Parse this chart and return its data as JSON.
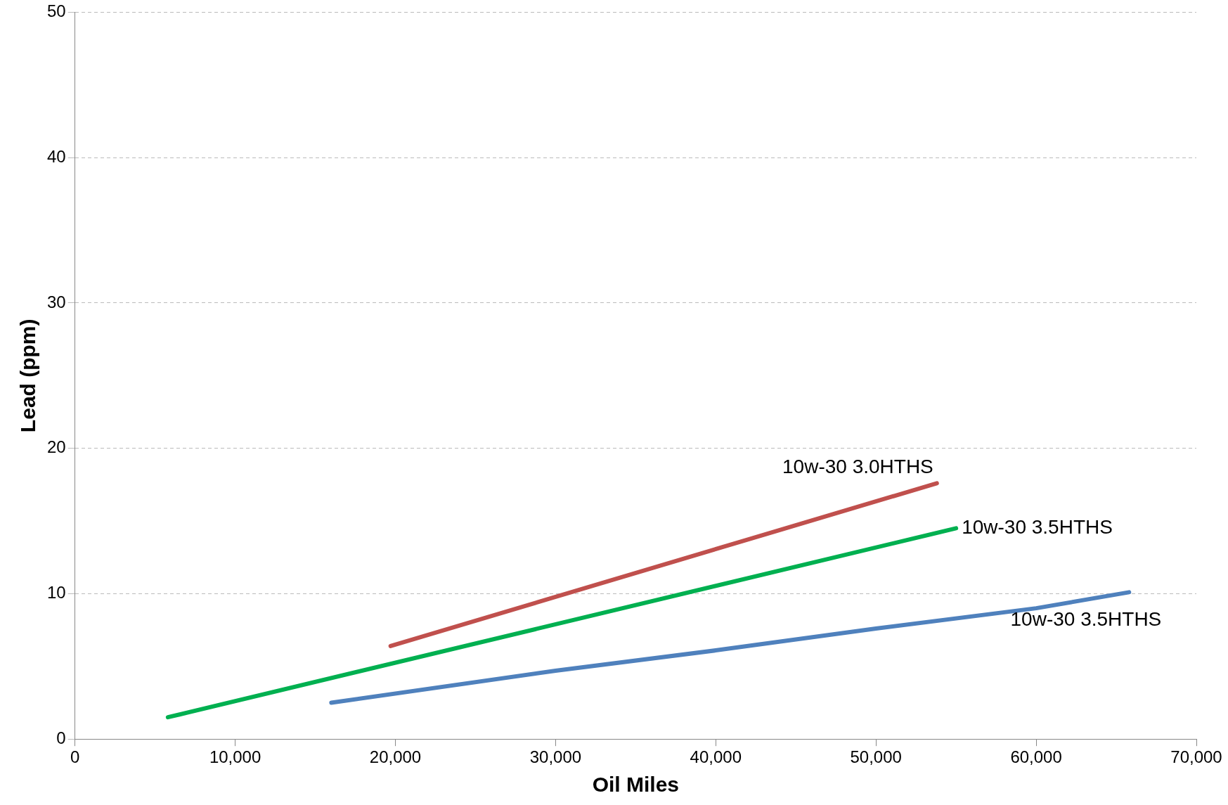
{
  "chart_data": {
    "type": "line",
    "xlabel": "Oil Miles",
    "ylabel": "Lead (ppm)",
    "xlim": [
      0,
      70000
    ],
    "xticks": [
      0,
      {
        "value": 10000,
        "label": "10,000"
      },
      {
        "value": 20000,
        "label": "20,000"
      },
      {
        "value": 30000,
        "label": "30,000"
      },
      {
        "value": 40000,
        "label": "40,000"
      },
      {
        "value": 50000,
        "label": "50,000"
      },
      {
        "value": 60000,
        "label": "60,000"
      },
      {
        "value": 70000,
        "label": "70,000"
      }
    ],
    "ylim": [
      0,
      50
    ],
    "yticks": [
      0,
      10,
      20,
      30,
      40,
      50
    ],
    "grid": "y",
    "legend": false,
    "marker": "none",
    "line_style": "solid",
    "series": [
      {
        "name": "10w-30 3.0HTHS",
        "color": "#c0504d",
        "x": [
          19700,
          53800
        ],
        "values": [
          6.4,
          17.6
        ]
      },
      {
        "name": "10w-30 3.5HTHS",
        "color": "#00b050",
        "x": [
          5800,
          55000
        ],
        "values": [
          1.5,
          14.5
        ]
      },
      {
        "name": "10w-30 3.5HTHS",
        "color": "#4f81bd",
        "x": [
          16000,
          30000,
          40000,
          50000,
          60000,
          65800
        ],
        "values": [
          2.5,
          4.7,
          6.1,
          7.6,
          9.0,
          10.1
        ]
      }
    ]
  }
}
